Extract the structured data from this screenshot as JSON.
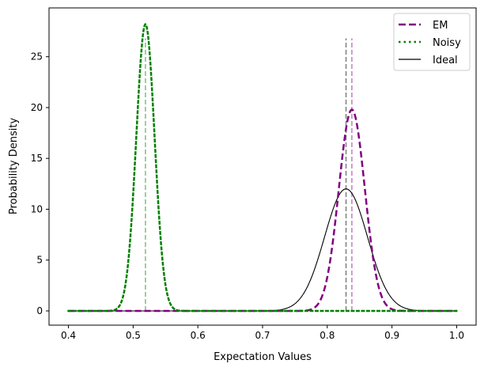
{
  "chart_data": {
    "type": "line",
    "title": "",
    "xlabel": "Expectation Values",
    "ylabel": "Probability Density",
    "xlim": [
      0.37,
      1.03
    ],
    "ylim": [
      -1.4,
      29.8
    ],
    "xticks": [
      0.4,
      0.5,
      0.6,
      0.7,
      0.8,
      0.9,
      1.0
    ],
    "xtick_labels": [
      "0.4",
      "0.5",
      "0.6",
      "0.7",
      "0.8",
      "0.9",
      "1.0"
    ],
    "yticks": [
      0,
      5,
      10,
      15,
      20,
      25
    ],
    "ytick_labels": [
      "0",
      "5",
      "10",
      "15",
      "20",
      "25"
    ],
    "grid": false,
    "legend": "top-right",
    "x_range": [
      0.4,
      1.0
    ],
    "series": [
      {
        "name": "EM",
        "color": "#800080",
        "style": "dashed",
        "distribution": "normal",
        "mean": 0.838,
        "std": 0.0201,
        "peak": 19.8
      },
      {
        "name": "Noisy",
        "color": "#008000",
        "style": "dotted",
        "distribution": "normal",
        "mean": 0.519,
        "std": 0.01415,
        "peak": 28.2
      },
      {
        "name": "Ideal",
        "color": "#000000",
        "style": "solid",
        "distribution": "normal",
        "mean": 0.829,
        "std": 0.0332,
        "peak": 12.0
      }
    ],
    "vertical_lines": [
      {
        "x": 0.519,
        "color": "#008000",
        "y_top": 26.8
      },
      {
        "x": 0.829,
        "color": "#000000",
        "y_top": 26.8
      },
      {
        "x": 0.838,
        "color": "#800080",
        "y_top": 26.8
      }
    ]
  }
}
